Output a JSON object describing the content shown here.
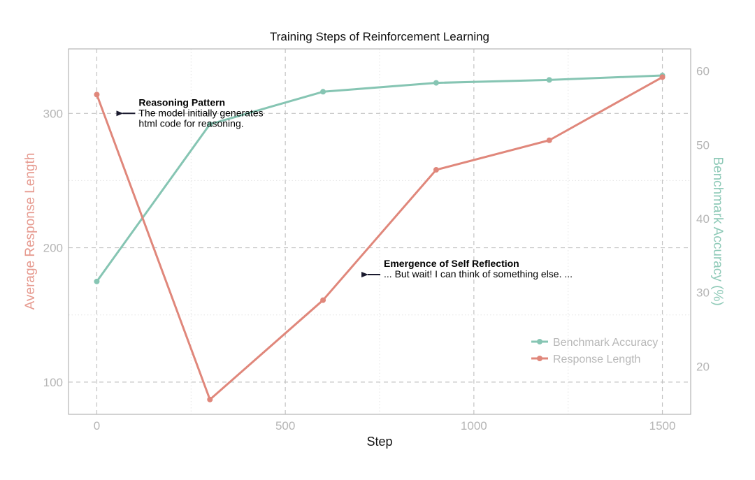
{
  "chart_data": {
    "type": "line",
    "title": "Training Steps of Reinforcement Learning",
    "xlabel": "Step",
    "ylabel_left": "Average Response Length",
    "ylabel_right": "Benchmark Accuracy (%)",
    "x": [
      0,
      300,
      600,
      900,
      1200,
      1500
    ],
    "xlim": [
      -75,
      1575
    ],
    "xticks": [
      0,
      500,
      1000,
      1500
    ],
    "ylim_left": [
      76,
      348
    ],
    "yticks_left": [
      100,
      200,
      300
    ],
    "ylim_right": [
      13.5,
      63
    ],
    "yticks_right": [
      20,
      30,
      40,
      50,
      60
    ],
    "grid": true,
    "legend_position": "lower-right",
    "series": [
      {
        "name": "Benchmark Accuracy",
        "axis": "right",
        "color": "#86c5b3",
        "values": [
          31.5,
          52.8,
          57.2,
          58.4,
          58.8,
          59.4
        ]
      },
      {
        "name": "Response Length",
        "axis": "left",
        "color": "#e0877b",
        "values": [
          314,
          87,
          161,
          258,
          280,
          327
        ]
      }
    ],
    "annotations": [
      {
        "title": "Reasoning Pattern",
        "lines": [
          "The model initially generates",
          "html code for reasoning."
        ],
        "arrow_x": 50,
        "arrow_y_left": 300
      },
      {
        "title": "Emergence of Self Reflection",
        "lines": [
          "... But wait! I can think of something else. ..."
        ],
        "arrow_x": 700,
        "arrow_y_left": 180
      }
    ]
  }
}
